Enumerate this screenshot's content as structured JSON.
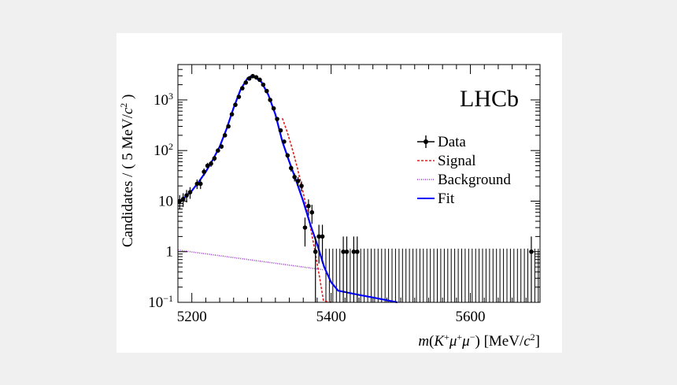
{
  "chart_data": {
    "type": "scatter",
    "title": "",
    "experiment_label": "LHCb",
    "xlabel": {
      "italic": "m",
      "open": "(",
      "K": "K",
      "K_sup": "+",
      "mu1": "μ",
      "mu1_sup": "+",
      "mu2": "μ",
      "mu2_sup": "−",
      "close": ")",
      "units": "[MeV/",
      "c": "c",
      "c_sup": "2",
      "units_close": "]"
    },
    "ylabel": {
      "text": "Candidates / ( 5 MeV/",
      "c": "c",
      "c_sup": "2",
      "close": " )"
    },
    "x_range": [
      5180,
      5700
    ],
    "y_range": [
      0.1,
      5000
    ],
    "y_scale": "log",
    "x_ticks": [
      {
        "value": 5200,
        "label": "5200"
      },
      {
        "value": 5400,
        "label": "5400"
      },
      {
        "value": 5600,
        "label": "5600"
      }
    ],
    "y_ticks": [
      {
        "value": 0.1,
        "base": "10",
        "exp": "−1"
      },
      {
        "value": 1,
        "base": "1",
        "exp": ""
      },
      {
        "value": 10,
        "base": "10",
        "exp": ""
      },
      {
        "value": 100,
        "base": "10",
        "exp": "2"
      },
      {
        "value": 1000,
        "base": "10",
        "exp": "3"
      }
    ],
    "legend": {
      "position": "top-right",
      "entries": [
        {
          "label": "Data",
          "style": "marker"
        },
        {
          "label": "Signal",
          "style": "dashed",
          "color": "#dd2222"
        },
        {
          "label": "Background",
          "style": "dotted",
          "color": "#9933cc"
        },
        {
          "label": "Fit",
          "style": "solid",
          "color": "#0000ff"
        }
      ]
    },
    "colors": {
      "data": "#000000",
      "signal": "#dd2222",
      "background": "#9933cc",
      "fit": "#0000ff"
    },
    "signal_model": {
      "mean": 5285,
      "peak": 2950,
      "sigma_left": 24.5,
      "sigma_right": 23,
      "cutoff": 5400
    },
    "background_model": {
      "at_5180": 1.08,
      "decay_per_MeV": 0.0043
    },
    "fit_curve": [
      [
        5180,
        9
      ],
      [
        5190,
        12
      ],
      [
        5200,
        16
      ],
      [
        5210,
        24
      ],
      [
        5220,
        38
      ],
      [
        5230,
        65
      ],
      [
        5240,
        120
      ],
      [
        5250,
        270
      ],
      [
        5260,
        700
      ],
      [
        5270,
        1600
      ],
      [
        5280,
        2700
      ],
      [
        5285,
        2950
      ],
      [
        5290,
        2850
      ],
      [
        5300,
        2250
      ],
      [
        5310,
        1250
      ],
      [
        5320,
        520
      ],
      [
        5330,
        150
      ],
      [
        5340,
        60
      ],
      [
        5350,
        25
      ],
      [
        5360,
        10
      ],
      [
        5370,
        3.5
      ],
      [
        5380,
        1.4
      ],
      [
        5390,
        0.5
      ],
      [
        5400,
        0.25
      ],
      [
        5410,
        0.17
      ],
      [
        5420,
        0.16
      ],
      [
        5440,
        0.14
      ],
      [
        5460,
        0.125
      ],
      [
        5480,
        0.11
      ],
      [
        5495,
        0.1
      ]
    ],
    "data_points": [
      {
        "x": 5182.5,
        "y": 10
      },
      {
        "x": 5187.5,
        "y": 11
      },
      {
        "x": 5192.5,
        "y": 13
      },
      {
        "x": 5197.5,
        "y": 15
      },
      {
        "x": 5207.5,
        "y": 22
      },
      {
        "x": 5212.5,
        "y": 22
      },
      {
        "x": 5217.5,
        "y": 38
      },
      {
        "x": 5222.5,
        "y": 50
      },
      {
        "x": 5227.5,
        "y": 55
      },
      {
        "x": 5232.5,
        "y": 70
      },
      {
        "x": 5237.5,
        "y": 100
      },
      {
        "x": 5242.5,
        "y": 120
      },
      {
        "x": 5247.5,
        "y": 200
      },
      {
        "x": 5252.5,
        "y": 300
      },
      {
        "x": 5257.5,
        "y": 520
      },
      {
        "x": 5262.5,
        "y": 800
      },
      {
        "x": 5267.5,
        "y": 1150
      },
      {
        "x": 5272.5,
        "y": 1700
      },
      {
        "x": 5277.5,
        "y": 2200
      },
      {
        "x": 5282.5,
        "y": 2650
      },
      {
        "x": 5287.5,
        "y": 2950
      },
      {
        "x": 5292.5,
        "y": 2800
      },
      {
        "x": 5297.5,
        "y": 2500
      },
      {
        "x": 5302.5,
        "y": 2000
      },
      {
        "x": 5307.5,
        "y": 1500
      },
      {
        "x": 5312.5,
        "y": 1000
      },
      {
        "x": 5317.5,
        "y": 680
      },
      {
        "x": 5322.5,
        "y": 420
      },
      {
        "x": 5327.5,
        "y": 250
      },
      {
        "x": 5332.5,
        "y": 150
      },
      {
        "x": 5337.5,
        "y": 80
      },
      {
        "x": 5342.5,
        "y": 45
      },
      {
        "x": 5347.5,
        "y": 30
      },
      {
        "x": 5352.5,
        "y": 25
      },
      {
        "x": 5357.5,
        "y": 20
      },
      {
        "x": 5362.5,
        "y": 3
      },
      {
        "x": 5367.5,
        "y": 8
      },
      {
        "x": 5372.5,
        "y": 6
      },
      {
        "x": 5377.5,
        "y": 1
      },
      {
        "x": 5382.5,
        "y": 2
      },
      {
        "x": 5387.5,
        "y": 2
      },
      {
        "x": 5417.5,
        "y": 1
      },
      {
        "x": 5422.5,
        "y": 1
      },
      {
        "x": 5432.5,
        "y": 1
      },
      {
        "x": 5437.5,
        "y": 1
      },
      {
        "x": 5687.5,
        "y": 1
      }
    ],
    "empty_bin_upper_error": 1.15,
    "bin_width": 5
  }
}
